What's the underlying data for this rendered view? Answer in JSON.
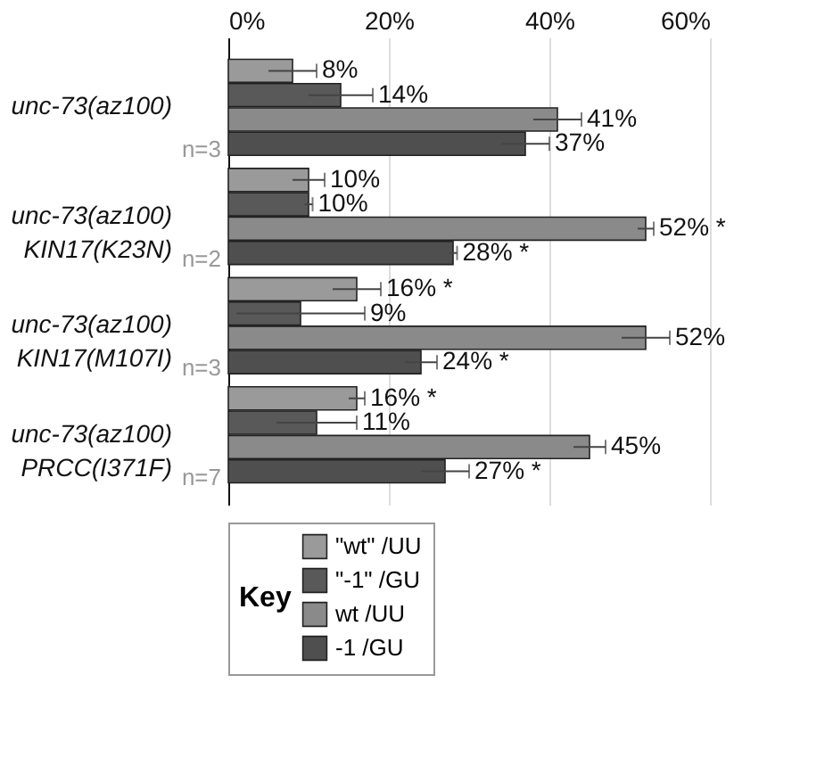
{
  "chart_data": {
    "type": "bar",
    "orientation": "horizontal",
    "categories": [
      "unc-73(az100)",
      "unc-73(az100)\nKIN17(K23N)",
      "unc-73(az100)\nKIN17(M107I)",
      "unc-73(az100)\nPRCC(I371F)"
    ],
    "series": [
      {
        "name": "\"wt\" /UU",
        "color": "#9a9a9a",
        "values": [
          8,
          10,
          16,
          16
        ],
        "errors": [
          3,
          2,
          3,
          1
        ],
        "value_labels": [
          "8%",
          "10%",
          "16% *",
          "16% *"
        ]
      },
      {
        "name": "\"-1\" /GU",
        "color": "#595959",
        "values": [
          14,
          10,
          9,
          11
        ],
        "errors": [
          4,
          0.5,
          8,
          5
        ],
        "value_labels": [
          "14%",
          "10%",
          "9%",
          "11%"
        ]
      },
      {
        "name": "wt /UU",
        "color": "#8a8a8a",
        "values": [
          41,
          52,
          52,
          45
        ],
        "errors": [
          3,
          1,
          3,
          2
        ],
        "value_labels": [
          "41%",
          "52% *",
          "52%",
          "45%"
        ]
      },
      {
        "name": "-1 /GU",
        "color": "#4f4f4f",
        "values": [
          37,
          28,
          24,
          27
        ],
        "errors": [
          3,
          0.5,
          2,
          3
        ],
        "value_labels": [
          "37%",
          "28% *",
          "24% *",
          "27% *"
        ]
      }
    ],
    "xlim": [
      0,
      60
    ],
    "xticks": [
      {
        "value": 0,
        "label": "0%"
      },
      {
        "value": 20,
        "label": "20%"
      },
      {
        "value": 40,
        "label": "40%"
      },
      {
        "value": 60,
        "label": "60%"
      }
    ],
    "grid": "x",
    "legend": "bottom",
    "legend_title": "Key",
    "annotations": [
      "n=3",
      "n=2",
      "n=3",
      "n=7"
    ]
  }
}
